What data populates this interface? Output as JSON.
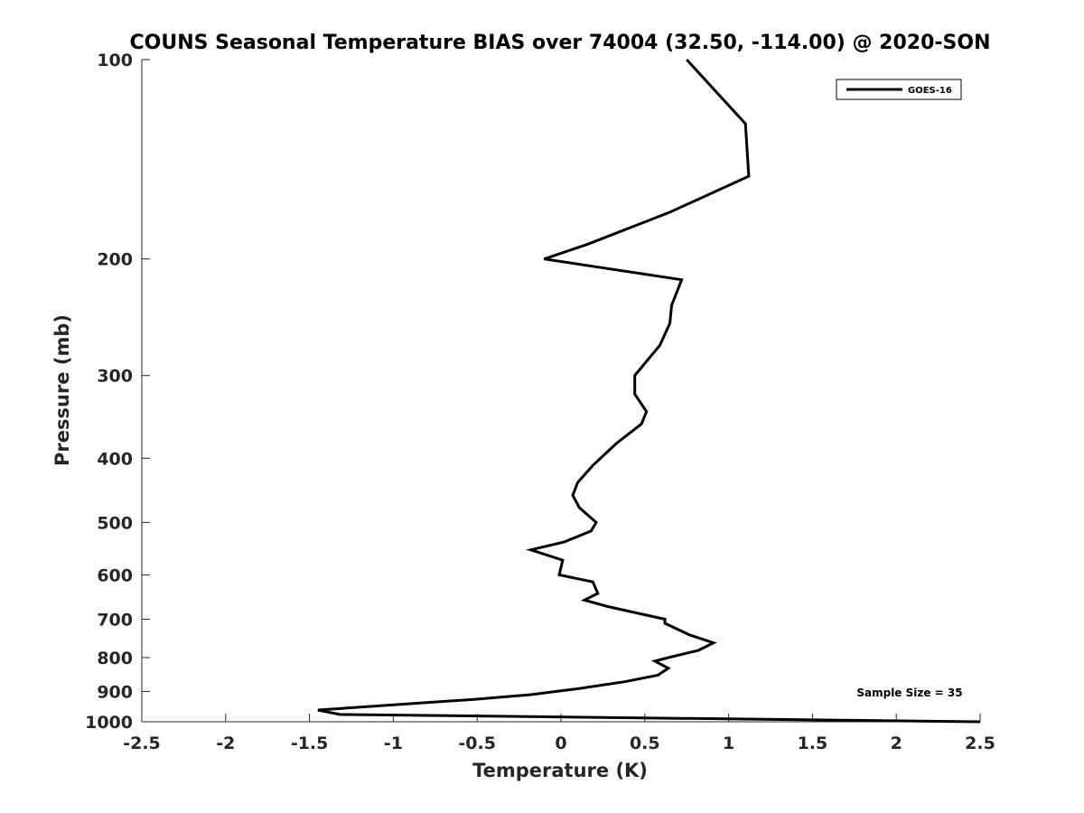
{
  "chart_data": {
    "type": "line",
    "title": "COUNS Seasonal Temperature BIAS over 74004 (32.50, -114.00) @ 2020-SON",
    "xlabel": "Temperature (K)",
    "ylabel": "Pressure (mb)",
    "xlim": [
      -2.5,
      2.5
    ],
    "ylim": [
      100,
      1000
    ],
    "y_scale": "log",
    "y_reversed": true,
    "grid": false,
    "legend_position": "top-right",
    "x_ticks": [
      -2.5,
      -2,
      -1.5,
      -1,
      -0.5,
      0,
      0.5,
      1,
      1.5,
      2,
      2.5
    ],
    "x_tick_labels": [
      "-2.5",
      "-2",
      "-1.5",
      "-1",
      "-0.5",
      "0",
      "0.5",
      "1",
      "1.5",
      "2",
      "2.5"
    ],
    "y_ticks": [
      100,
      200,
      300,
      400,
      500,
      600,
      700,
      800,
      900,
      1000
    ],
    "y_tick_labels": [
      "100",
      "200",
      "300",
      "400",
      "500",
      "600",
      "700",
      "800",
      "900",
      "1000"
    ],
    "series": [
      {
        "name": "GOES-16",
        "color": "#000000",
        "points": [
          [
            0.75,
            100
          ],
          [
            1.1,
            125
          ],
          [
            1.12,
            150
          ],
          [
            0.65,
            170
          ],
          [
            0.16,
            190
          ],
          [
            -0.1,
            200
          ],
          [
            0.72,
            215
          ],
          [
            0.66,
            235
          ],
          [
            0.65,
            250
          ],
          [
            0.59,
            270
          ],
          [
            0.44,
            300
          ],
          [
            0.44,
            320
          ],
          [
            0.51,
            340
          ],
          [
            0.48,
            355
          ],
          [
            0.33,
            380
          ],
          [
            0.19,
            410
          ],
          [
            0.1,
            435
          ],
          [
            0.07,
            455
          ],
          [
            0.11,
            475
          ],
          [
            0.21,
            500
          ],
          [
            0.18,
            515
          ],
          [
            0.02,
            535
          ],
          [
            -0.18,
            550
          ],
          [
            0.01,
            570
          ],
          [
            -0.01,
            600
          ],
          [
            0.19,
            615
          ],
          [
            0.22,
            640
          ],
          [
            0.14,
            655
          ],
          [
            0.28,
            670
          ],
          [
            0.62,
            700
          ],
          [
            0.62,
            710
          ],
          [
            0.77,
            740
          ],
          [
            0.91,
            760
          ],
          [
            0.82,
            780
          ],
          [
            0.64,
            800
          ],
          [
            0.56,
            810
          ],
          [
            0.64,
            830
          ],
          [
            0.58,
            850
          ],
          [
            0.38,
            870
          ],
          [
            0.12,
            890
          ],
          [
            -0.18,
            910
          ],
          [
            -0.52,
            925
          ],
          [
            -1.45,
            960
          ],
          [
            -1.32,
            975
          ],
          [
            2.5,
            1000
          ]
        ]
      }
    ],
    "annotations": [
      "Sample Size = 35"
    ]
  }
}
